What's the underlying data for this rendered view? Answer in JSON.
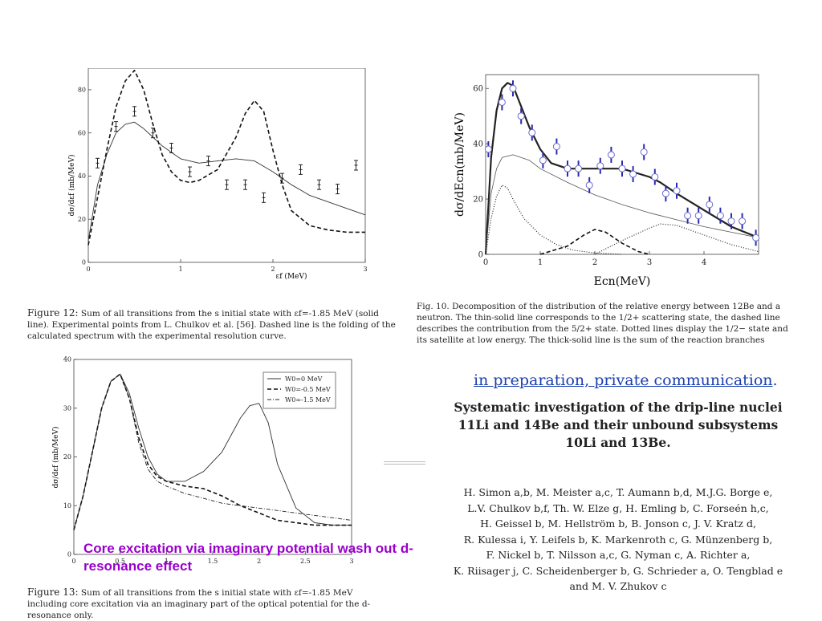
{
  "fig12": {
    "caption_label": "Figure 12:",
    "caption_text": "Sum of all transitions from the s initial state with εf=-1.85 MeV (solid line). Experimental points from L. Chulkov et al. [56]. Dashed line is the folding of the calculated spectrum with the experimental resolution curve.",
    "xlabel": "εf   (MeV)",
    "ylabel": "dσ/dεf   (mb/MeV)"
  },
  "fig13": {
    "caption_label": "Figure 13:",
    "caption_text": "Sum of all transitions from the s initial state with εf=-1.85 MeV including core excitation via an imaginary part of the optical potential for the d-resonance only.",
    "ylabel": "dσ/dεf   (mb/MeV)"
  },
  "fig10": {
    "caption": "Fig. 10. Decomposition of the distribution of the relative energy between 12Be and a neutron. The thin-solid line corresponds to the 1/2+ scattering state, the dashed line describes the contribution from the 5/2+ state. Dotted lines display the 1/2− state and its satellite at low energy. The thick-solid line is the sum of the reaction branches",
    "xlabel": "Ecn(MeV)",
    "ylabel": "dσ/dEcn(mb/MeV)"
  },
  "annotation": "Core excitation via imaginary potential wash out d-resonance effect",
  "link_text": "in preparation, private communication",
  "link_suffix": ".",
  "paper": {
    "title_line1": "Systematic investigation of the drip-line nuclei",
    "title_line2": "11Li and 14Be and their unbound subsystems",
    "title_line3": "10Li and 13Be.",
    "authors": [
      "H. Simon a,b, M. Meister a,c, T. Aumann b,d, M.J.G. Borge e,",
      "L.V. Chulkov b,f, Th. W. Elze g, H. Emling b, C. Forseén h,c,",
      "H. Geissel b, M. Hellström b, B. Jonson c, J. V. Kratz d,",
      "R. Kulessa i, Y. Leifels b, K. Markenroth c, G. Münzenberg b,",
      "F. Nickel b, T. Nilsson a,c, G. Nyman c, A. Richter a,",
      "K. Riisager j, C. Scheidenberger b, G. Schrieder a, O. Tengblad e",
      "and M. V. Zhukov c"
    ]
  },
  "chart_data": [
    {
      "type": "line",
      "xlabel": "εf (MeV)",
      "ylabel": "dσ/dεf (mb/MeV)",
      "xlim": [
        0,
        3
      ],
      "ylim": [
        0,
        90
      ],
      "xticks": [
        "0",
        "1",
        "2",
        "3"
      ],
      "yticks": [
        "0",
        "20",
        "40",
        "60",
        "80"
      ],
      "series": [
        {
          "style": "solid",
          "x": [
            0,
            0.1,
            0.2,
            0.3,
            0.4,
            0.5,
            0.6,
            0.7,
            0.8,
            0.9,
            1.0,
            1.2,
            1.4,
            1.6,
            1.8,
            2.0,
            2.2,
            2.4,
            2.6,
            2.8,
            3.0
          ],
          "y": [
            10,
            36,
            50,
            60,
            64,
            65,
            62,
            58,
            54,
            51,
            48,
            46,
            47,
            48,
            47,
            42,
            36,
            31,
            28,
            25,
            22
          ]
        },
        {
          "style": "dashed",
          "x": [
            0,
            0.1,
            0.2,
            0.3,
            0.4,
            0.5,
            0.6,
            0.7,
            0.8,
            0.9,
            1.0,
            1.1,
            1.2,
            1.4,
            1.6,
            1.7,
            1.8,
            1.9,
            2.0,
            2.1,
            2.2,
            2.4,
            2.6,
            2.8,
            3.0
          ],
          "y": [
            8,
            30,
            52,
            72,
            84,
            89,
            80,
            64,
            50,
            42,
            38,
            37,
            38,
            43,
            58,
            69,
            75,
            70,
            52,
            36,
            24,
            17,
            15,
            14,
            14
          ]
        }
      ],
      "points": {
        "x": [
          0.1,
          0.3,
          0.5,
          0.7,
          0.9,
          1.1,
          1.3,
          1.5,
          1.7,
          1.9,
          2.1,
          2.3,
          2.5,
          2.7,
          2.9
        ],
        "y": [
          46,
          63,
          70,
          60,
          53,
          42,
          47,
          36,
          36,
          30,
          39,
          43,
          36,
          34,
          45
        ]
      }
    },
    {
      "type": "line",
      "ylabel": "dσ/dεf (mb/MeV)",
      "xlim": [
        0,
        3
      ],
      "ylim": [
        0,
        40
      ],
      "xticks": [
        "0",
        "0.5",
        "1",
        "1.5",
        "2",
        "2.5",
        "3"
      ],
      "yticks": [
        "0",
        "10",
        "20",
        "30",
        "40"
      ],
      "series": [
        {
          "name": "W0=0 MeV",
          "style": "solid",
          "x": [
            0,
            0.1,
            0.2,
            0.3,
            0.4,
            0.5,
            0.6,
            0.7,
            0.8,
            0.9,
            1.0,
            1.2,
            1.4,
            1.6,
            1.8,
            1.9,
            2.0,
            2.1,
            2.2,
            2.4,
            2.6,
            2.8,
            3.0
          ],
          "y": [
            5,
            12,
            21,
            30,
            35.5,
            37,
            33,
            26,
            20,
            16.5,
            15,
            15,
            17,
            21,
            28,
            30.5,
            31,
            27,
            18.5,
            9.5,
            6.5,
            6,
            6
          ]
        },
        {
          "name": "W0=-0.5 MeV",
          "style": "dashed",
          "x": [
            0,
            0.1,
            0.2,
            0.3,
            0.4,
            0.5,
            0.6,
            0.7,
            0.8,
            0.9,
            1.0,
            1.2,
            1.4,
            1.6,
            1.8,
            2.0,
            2.2,
            2.4,
            2.6,
            2.8,
            3.0
          ],
          "y": [
            5,
            12,
            21,
            30,
            35.5,
            37,
            32,
            24,
            18.5,
            16,
            15,
            14,
            13.5,
            12,
            10,
            8.5,
            7,
            6.5,
            6,
            6,
            6
          ]
        },
        {
          "name": "W0=-1.5 MeV",
          "style": "dashdot",
          "x": [
            0,
            0.1,
            0.2,
            0.3,
            0.4,
            0.5,
            0.6,
            0.7,
            0.8,
            0.9,
            1.0,
            1.2,
            1.4,
            1.6,
            1.8,
            2.0,
            2.2,
            2.4,
            2.6,
            2.8,
            3.0
          ],
          "y": [
            5,
            12,
            21,
            30,
            35.5,
            37,
            32,
            23,
            17.5,
            15,
            14,
            12.5,
            11.5,
            10.5,
            10,
            9.5,
            9,
            8.5,
            8,
            7.5,
            7
          ]
        }
      ]
    },
    {
      "type": "line",
      "xlabel": "Ecn(MeV)",
      "ylabel": "dσ/dEcn(mb/MeV)",
      "xlim": [
        0,
        5
      ],
      "ylim": [
        0,
        65
      ],
      "xticks": [
        "0",
        "1",
        "2",
        "3",
        "4"
      ],
      "yticks": [
        "0",
        "20",
        "40",
        "60"
      ],
      "series": [
        {
          "style": "thick-solid",
          "x": [
            0,
            0.1,
            0.2,
            0.3,
            0.4,
            0.5,
            0.6,
            0.8,
            1.0,
            1.2,
            1.5,
            2.0,
            2.5,
            3.0,
            3.2,
            3.5,
            4.0,
            4.5,
            5.0
          ],
          "y": [
            0,
            35,
            52,
            60,
            62,
            61,
            56,
            46,
            38,
            33,
            31,
            31,
            31,
            28,
            26,
            22,
            16,
            10,
            6
          ]
        },
        {
          "style": "thin-solid",
          "x": [
            0,
            0.1,
            0.2,
            0.3,
            0.5,
            0.8,
            1.0,
            1.5,
            2.0,
            2.5,
            3.0,
            3.5,
            4.0,
            4.5,
            5.0
          ],
          "y": [
            0,
            22,
            31,
            35,
            36,
            34,
            31,
            26,
            21.5,
            18,
            15,
            12.5,
            10,
            8,
            6
          ]
        },
        {
          "style": "dashed",
          "x": [
            1.0,
            1.5,
            1.8,
            2.0,
            2.2,
            2.5,
            2.8,
            3.0
          ],
          "y": [
            0,
            3,
            7,
            9,
            8,
            4,
            1,
            0
          ]
        },
        {
          "style": "dotted",
          "x": [
            0,
            0.1,
            0.2,
            0.3,
            0.4,
            0.5,
            0.7,
            1.0,
            1.3,
            1.6,
            2.0,
            2.5
          ],
          "y": [
            0,
            13,
            21,
            25,
            24,
            20,
            13,
            7,
            3.5,
            1.5,
            0.5,
            0
          ]
        },
        {
          "style": "dotted",
          "x": [
            2.0,
            2.5,
            3.0,
            3.2,
            3.5,
            4.0,
            4.5,
            5.0
          ],
          "y": [
            0,
            5,
            9.5,
            11,
            10.5,
            7,
            3.5,
            1
          ]
        }
      ],
      "points": {
        "x": [
          0.05,
          0.3,
          0.5,
          0.65,
          0.85,
          1.05,
          1.3,
          1.5,
          1.7,
          1.9,
          2.1,
          2.3,
          2.5,
          2.7,
          2.9,
          3.1,
          3.3,
          3.5,
          3.7,
          3.9,
          4.1,
          4.3,
          4.5,
          4.7,
          4.95
        ],
        "y": [
          38,
          55,
          60,
          50,
          44,
          34,
          39,
          31,
          31,
          25,
          32,
          36,
          31,
          29,
          37,
          28,
          22,
          23,
          14,
          14,
          18,
          14,
          12,
          12,
          6
        ]
      }
    }
  ]
}
